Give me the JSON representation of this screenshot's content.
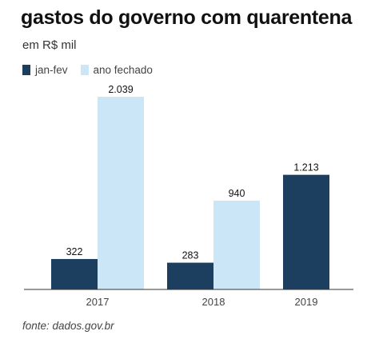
{
  "header": {
    "title": "gastos do governo com quarentena",
    "subtitle": "em R$ mil"
  },
  "footer": {
    "source": "fonte: dados.gov.br"
  },
  "colors": {
    "jan_fev": "#1c3f5f",
    "ano_fechado": "#cbe6f6",
    "axis": "#333333"
  },
  "chart_data": {
    "type": "bar",
    "title": "gastos do governo com quarentena",
    "subtitle": "em R$ mil",
    "categories": [
      "2017",
      "2018",
      "2019"
    ],
    "series": [
      {
        "name": "jan-fev",
        "values": [
          322,
          283,
          1213
        ],
        "labels": [
          "322",
          "283",
          "1.213"
        ]
      },
      {
        "name": "ano fechado",
        "values": [
          2039,
          940,
          null
        ],
        "labels": [
          "2.039",
          "940",
          ""
        ]
      }
    ],
    "ylim": [
      0,
      2100
    ],
    "grid": false,
    "legend": "top-left"
  }
}
